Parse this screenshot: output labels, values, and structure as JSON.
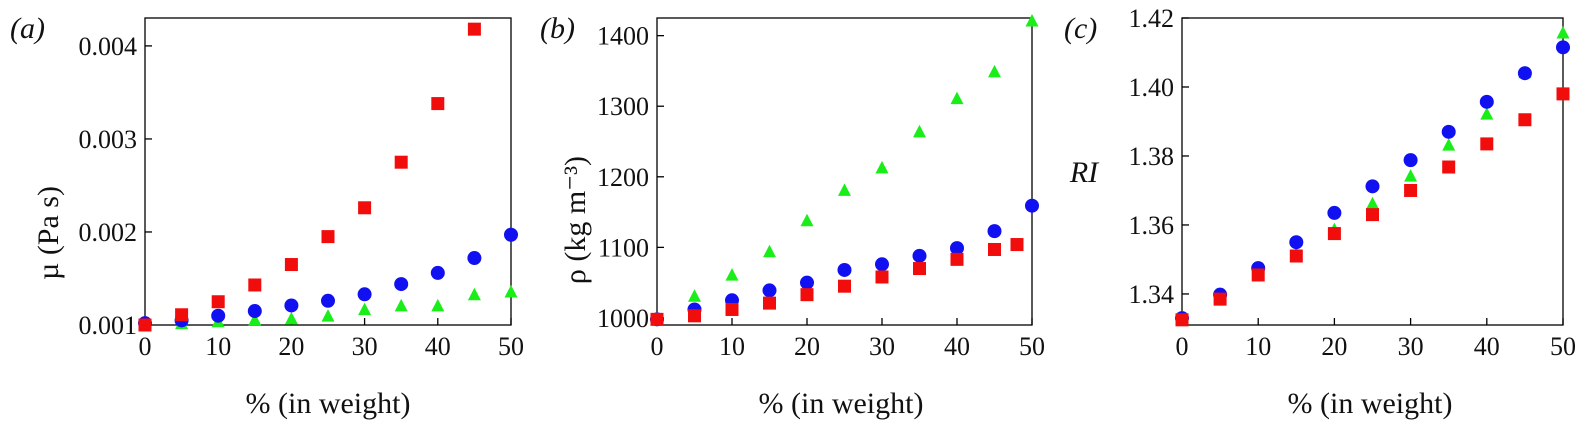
{
  "figure": {
    "colors": {
      "square": "#f20d0d",
      "circle": "#1010f0",
      "triangle": "#19ee19"
    }
  },
  "chart_data": [
    {
      "type": "scatter",
      "panel_label": "(a)",
      "xlabel": "% (in weight)",
      "ylabel": "µ (Pa s)",
      "xlim": [
        0,
        50
      ],
      "ylim": [
        0.001,
        0.0043
      ],
      "xticks": [
        0,
        10,
        20,
        30,
        40,
        50
      ],
      "xtick_labels": [
        "0",
        "10",
        "20",
        "30",
        "40",
        "50"
      ],
      "yticks": [
        0.001,
        0.002,
        0.003,
        0.004
      ],
      "ytick_labels": [
        "0.001",
        "0.002",
        "0.003",
        "0.004"
      ],
      "series": [
        {
          "marker": "square",
          "color": "#f20d0d",
          "x": [
            0,
            5,
            10,
            15,
            20,
            25,
            30,
            35,
            40,
            45
          ],
          "y": [
            0.001,
            0.00111,
            0.00125,
            0.00143,
            0.00165,
            0.00195,
            0.00226,
            0.00275,
            0.00338,
            0.00418
          ]
        },
        {
          "marker": "circle",
          "color": "#1010f0",
          "x": [
            0,
            5,
            10,
            15,
            20,
            25,
            30,
            35,
            40,
            45,
            50
          ],
          "y": [
            0.00102,
            0.00105,
            0.0011,
            0.00115,
            0.00121,
            0.00126,
            0.00133,
            0.00144,
            0.00156,
            0.00172,
            0.00197
          ]
        },
        {
          "marker": "triangle",
          "color": "#19ee19",
          "x": [
            0,
            5,
            10,
            15,
            20,
            25,
            30,
            35,
            40,
            45,
            50
          ],
          "y": [
            0.001,
            0.00101,
            0.00103,
            0.00105,
            0.00106,
            0.00109,
            0.00116,
            0.0012,
            0.0012,
            0.00132,
            0.00135
          ]
        }
      ]
    },
    {
      "type": "scatter",
      "panel_label": "(b)",
      "xlabel": "% (in weight)",
      "ylabel": "ρ (kg m⁻³)",
      "xlim": [
        0,
        50
      ],
      "ylim": [
        990,
        1425
      ],
      "xticks": [
        0,
        10,
        20,
        30,
        40,
        50
      ],
      "xtick_labels": [
        "0",
        "10",
        "20",
        "30",
        "40",
        "50"
      ],
      "yticks": [
        1000,
        1100,
        1200,
        1300,
        1400
      ],
      "ytick_labels": [
        "1000",
        "1100",
        "1200",
        "1300",
        "1400"
      ],
      "series": [
        {
          "marker": "square",
          "color": "#f20d0d",
          "x": [
            0,
            5,
            10,
            15,
            20,
            25,
            30,
            35,
            40,
            45,
            48
          ],
          "y": [
            998,
            1003,
            1012,
            1021,
            1033,
            1045,
            1058,
            1070,
            1083,
            1097,
            1104
          ]
        },
        {
          "marker": "circle",
          "color": "#1010f0",
          "x": [
            0,
            5,
            10,
            15,
            20,
            25,
            30,
            35,
            40,
            45,
            50
          ],
          "y": [
            998,
            1012,
            1025,
            1039,
            1050,
            1068,
            1076,
            1088,
            1099,
            1123,
            1159
          ]
        },
        {
          "marker": "triangle",
          "color": "#19ee19",
          "x": [
            0,
            5,
            10,
            15,
            20,
            25,
            30,
            35,
            40,
            45,
            50
          ],
          "y": [
            998,
            1030,
            1060,
            1093,
            1137,
            1180,
            1212,
            1263,
            1310,
            1348,
            1420
          ]
        }
      ]
    },
    {
      "type": "scatter",
      "panel_label": "(c)",
      "xlabel": "% (in weight)",
      "ylabel": "RI",
      "xlim": [
        0,
        50
      ],
      "ylim": [
        1.331,
        1.42
      ],
      "xticks": [
        0,
        10,
        20,
        30,
        40,
        50
      ],
      "xtick_labels": [
        "0",
        "10",
        "20",
        "30",
        "40",
        "50"
      ],
      "yticks": [
        1.34,
        1.36,
        1.38,
        1.4,
        1.42
      ],
      "ytick_labels": [
        "1.34",
        "1.36",
        "1.38",
        "1.40",
        "1.42"
      ],
      "series": [
        {
          "marker": "square",
          "color": "#f20d0d",
          "x": [
            0,
            5,
            10,
            15,
            20,
            25,
            30,
            35,
            40,
            45,
            50
          ],
          "y": [
            1.3325,
            1.3385,
            1.3455,
            1.351,
            1.3575,
            1.363,
            1.37,
            1.3768,
            1.3835,
            1.3905,
            1.398
          ]
        },
        {
          "marker": "circle",
          "color": "#1010f0",
          "x": [
            0,
            5,
            10,
            15,
            20,
            25,
            30,
            35,
            40,
            45,
            50
          ],
          "y": [
            1.333,
            1.3398,
            1.3475,
            1.355,
            1.3635,
            1.3712,
            1.3788,
            1.387,
            1.3957,
            1.404,
            1.4115
          ]
        },
        {
          "marker": "triangle",
          "color": "#19ee19",
          "x": [
            0,
            5,
            10,
            15,
            20,
            25,
            30,
            35,
            40,
            45,
            50
          ],
          "y": [
            1.333,
            1.339,
            1.3455,
            1.3515,
            1.3585,
            1.366,
            1.374,
            1.383,
            1.392,
            1.404,
            1.4155
          ]
        }
      ]
    }
  ]
}
